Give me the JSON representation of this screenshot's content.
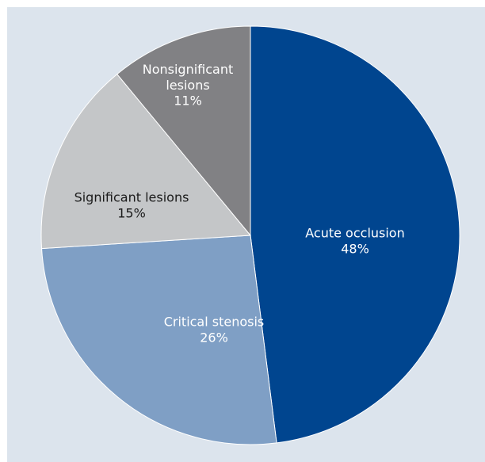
{
  "chart_data": {
    "type": "pie",
    "slices": [
      {
        "name": "Acute occlusion",
        "value": 48,
        "display": "48%",
        "color": "#00458f",
        "text_color": "#ffffff"
      },
      {
        "name": "Critical stenosis",
        "value": 26,
        "display": "26%",
        "color": "#7f9fc5",
        "text_color": "#ffffff"
      },
      {
        "name": "Significant lesions",
        "value": 15,
        "display": "15%",
        "color": "#c4c6c8",
        "text_color": "#1b1b1b"
      },
      {
        "name": "Nonsignificant lesions",
        "value": 11,
        "display": "11%",
        "color": "#818184",
        "text_color": "#ffffff"
      }
    ],
    "start_angle_deg": 0,
    "direction": "clockwise",
    "background": "#dce4ed",
    "legend": "none"
  }
}
